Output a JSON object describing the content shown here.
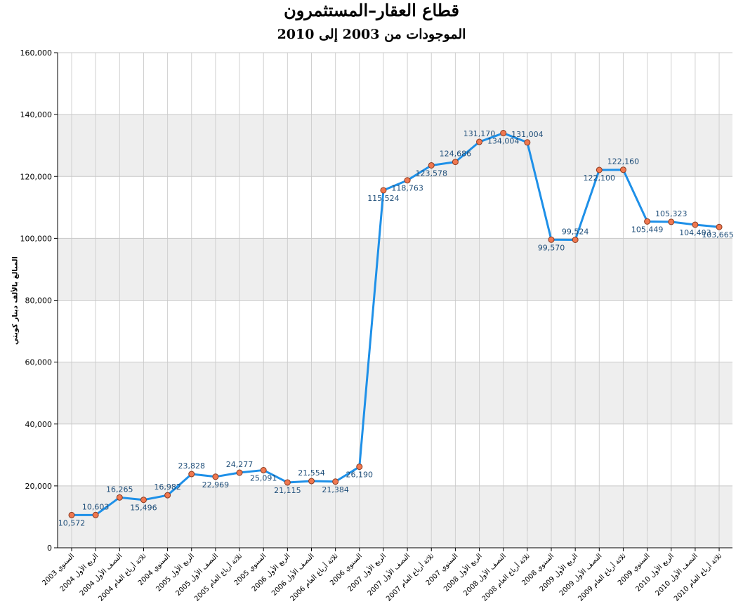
{
  "title": "قطاع العقار–المستثمرون",
  "subtitle": "الموجودات من 2003 إلى 2010",
  "chart_data": {
    "type": "line",
    "title": "قطاع العقار–المستثمرون",
    "subtitle": "الموجودات من 2003 إلى 2010",
    "ylabel": "المبالغ بالألف دينار كويتي",
    "xlabel": "",
    "ylim": [
      0,
      160000
    ],
    "yticks": [
      "0",
      "20,000",
      "40,000",
      "60,000",
      "80,000",
      "100,000",
      "120,000",
      "140,000",
      "160,000"
    ],
    "grid": true,
    "line_color": "#1e90e8",
    "marker_color": "#f07850",
    "band_color": "#eeeeee",
    "categories": [
      "السنوي 2003",
      "الربع الأول 2004",
      "النصف الأول 2004",
      "ثلاثة أرباع العام 2004",
      "السنوي 2004",
      "الربع الأول 2005",
      "النصف الأول 2005",
      "ثلاثة أرباع العام 2005",
      "السنوي 2005",
      "الربع الأول 2006",
      "النصف الأول 2006",
      "ثلاثة أرباع العام 2006",
      "السنوي 2006",
      "الربع الأول 2007",
      "النصف الأول 2007",
      "ثلاثة أرباع العام 2007",
      "السنوي 2007",
      "الربع الأول 2008",
      "النصف الأول 2008",
      "ثلاثة أرباع العام 2008",
      "السنوي 2008",
      "الربع الأول 2009",
      "النصف الأول 2009",
      "ثلاثة أرباع العام 2009",
      "السنوي 2009",
      "الربع الأول 2010",
      "النصف الأول 2010",
      "ثلاثة أرباع العام 2010"
    ],
    "values": [
      10572,
      10603,
      16265,
      15496,
      16982,
      23828,
      22969,
      24277,
      25091,
      21115,
      21554,
      21384,
      26190,
      115524,
      118763,
      123578,
      124686,
      131170,
      134004,
      131004,
      99570,
      99524,
      122100,
      122160,
      105449,
      105323,
      104403,
      103665
    ],
    "data_labels": [
      "10,572",
      "10,603",
      "16,265",
      "15,496",
      "16,982",
      "23,828",
      "22,969",
      "24,277",
      "25,091",
      "21,115",
      "21,554",
      "21,384",
      "26,190",
      "115,524",
      "118,763",
      "123,578",
      "124,686",
      "131,170",
      "134,004",
      "131,004",
      "99,570",
      "99,524",
      "122,100",
      "122,160",
      "105,449",
      "105,323",
      "104,403",
      "103,665"
    ],
    "label_positions": [
      "below",
      "above",
      "above",
      "below",
      "above",
      "above",
      "below",
      "above",
      "below",
      "below",
      "above",
      "below",
      "below",
      "below",
      "below",
      "below",
      "above",
      "above",
      "below",
      "above",
      "below",
      "above",
      "below",
      "above",
      "below",
      "above",
      "below",
      "below"
    ]
  }
}
